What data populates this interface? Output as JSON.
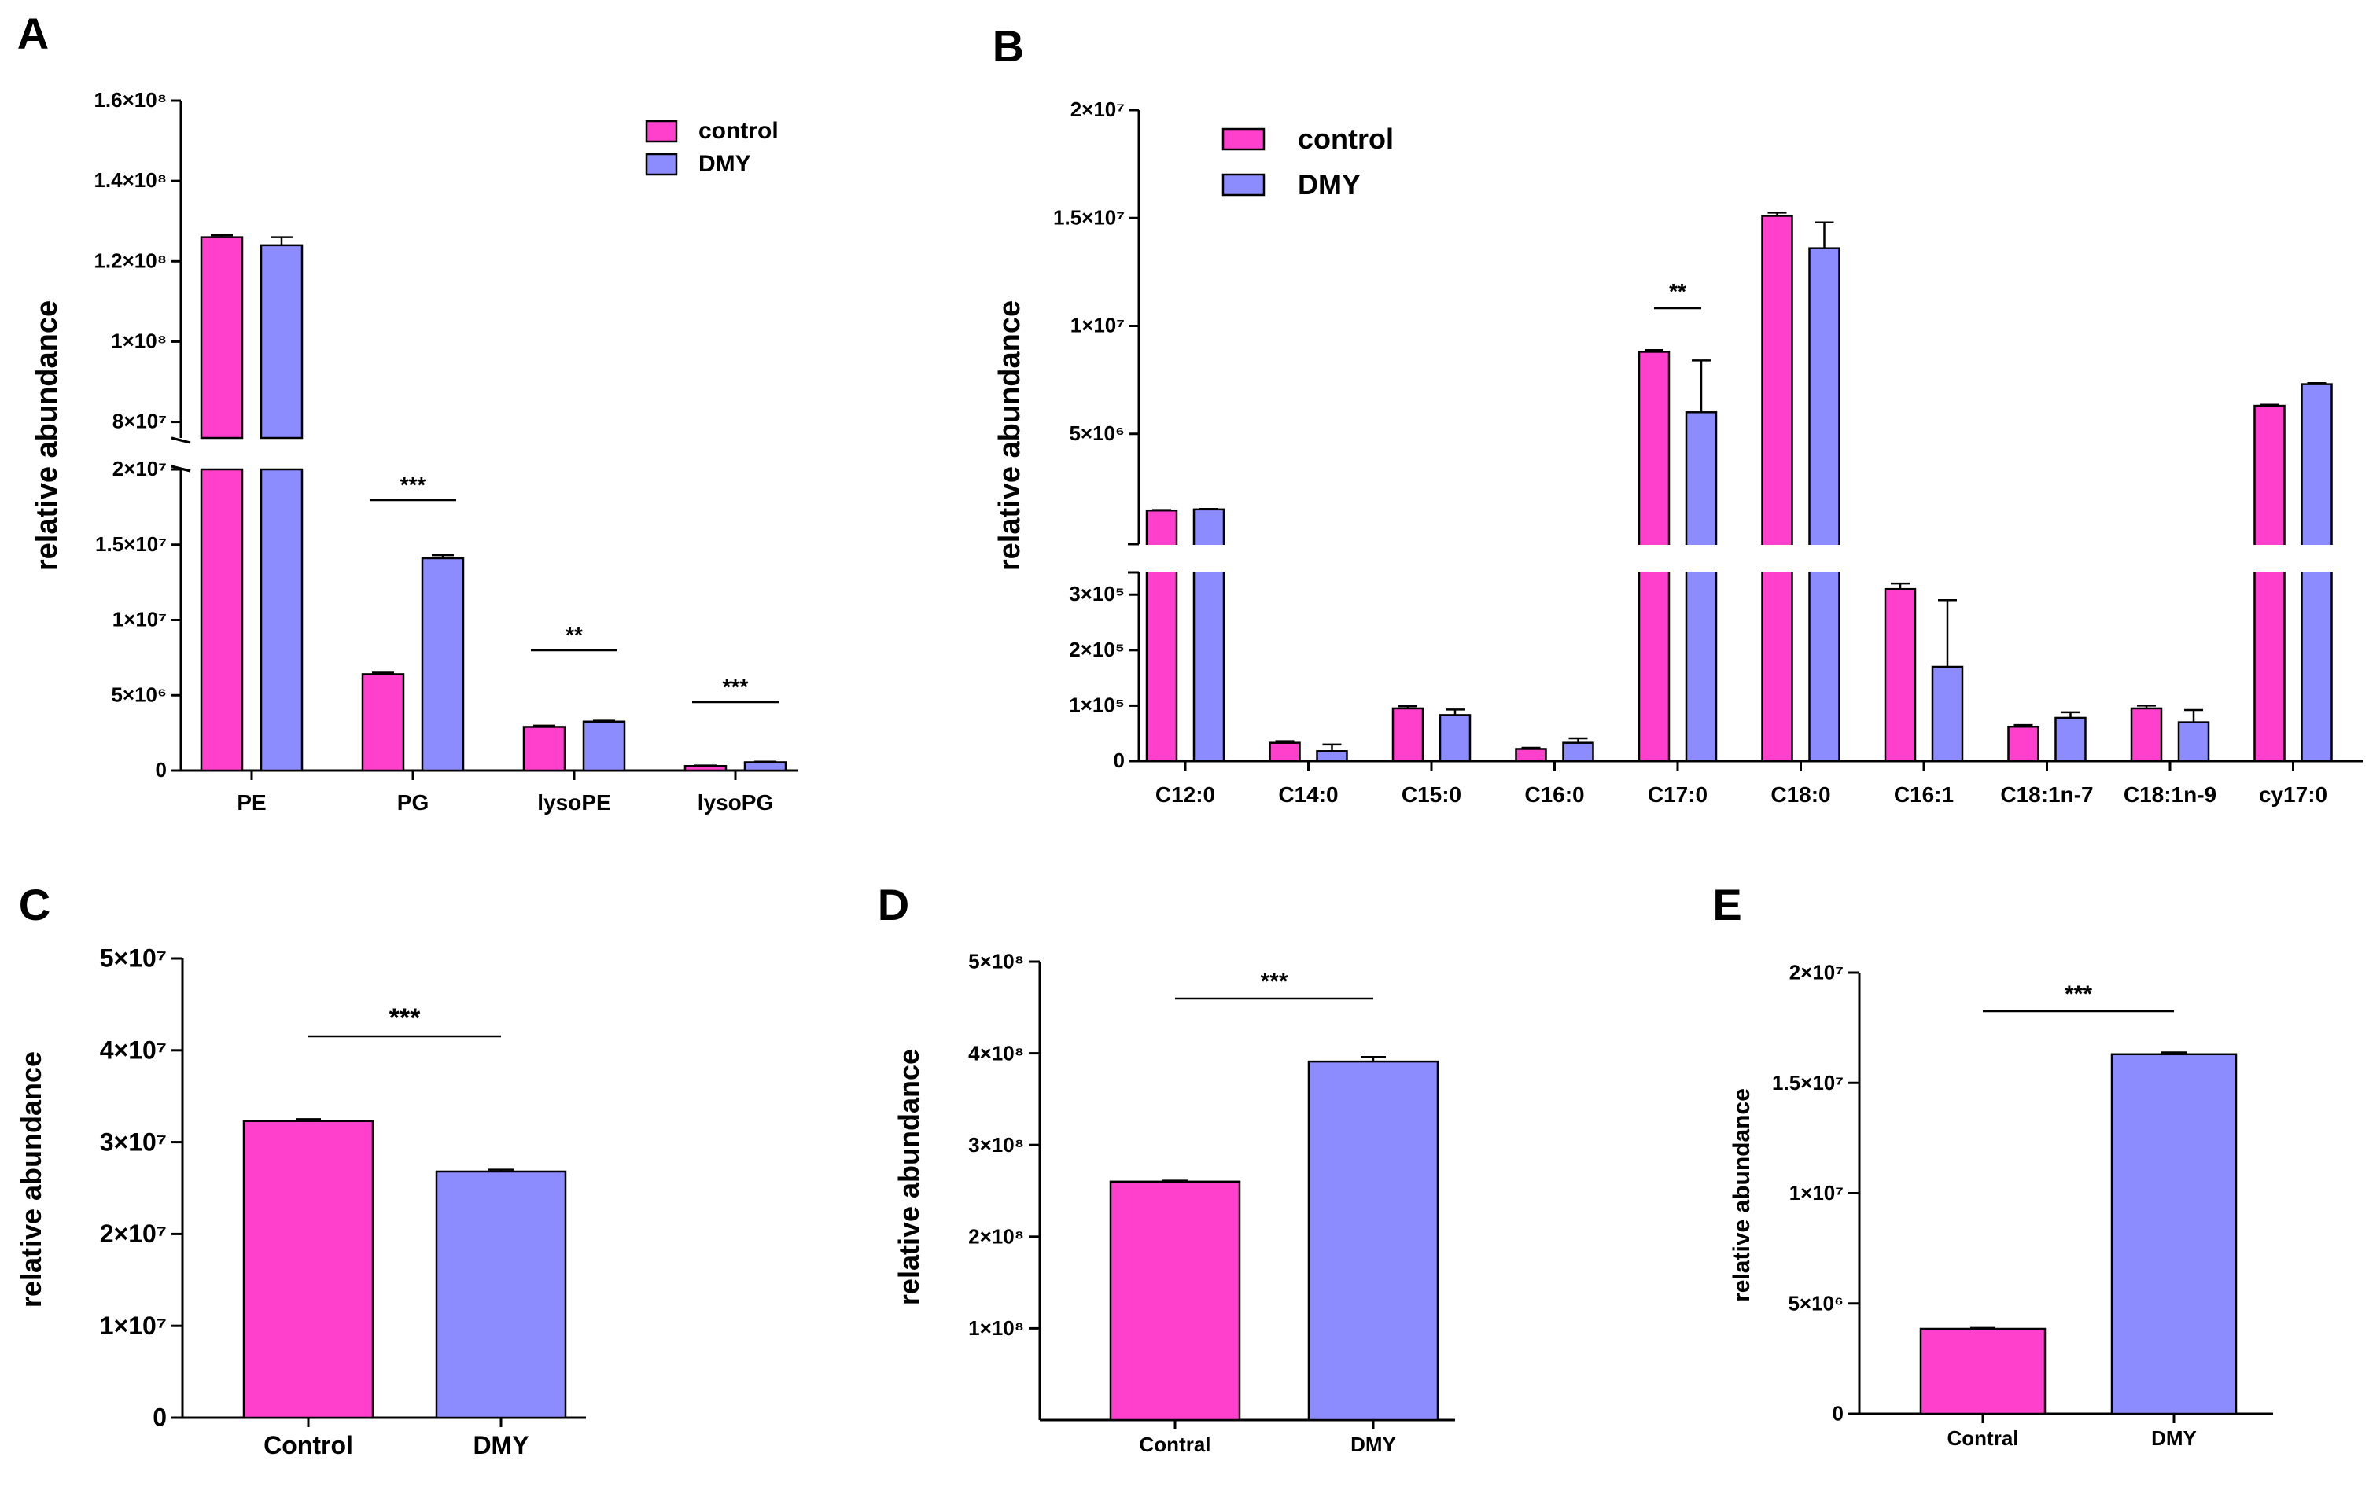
{
  "colors": {
    "control": "#FF40CC",
    "dmy": "#8C8CFF",
    "axis": "#000000"
  },
  "chart_data": [
    {
      "panel": "A",
      "type": "bar",
      "ylabel": "relative abundance",
      "categories": [
        "PE",
        "PG",
        "lysoPE",
        "lysoPG"
      ],
      "series": [
        {
          "name": "control",
          "values": [
            126000000,
            6400000,
            2900000,
            300000
          ],
          "errors": [
            500000,
            100000,
            80000,
            30000
          ]
        },
        {
          "name": "DMY",
          "values": [
            124000000,
            14100000,
            3250000,
            550000
          ],
          "errors": [
            2000000,
            200000,
            60000,
            40000
          ]
        }
      ],
      "axis_break": {
        "lower": [
          0,
          20000000
        ],
        "upper": [
          76000000,
          160000000
        ]
      },
      "yticks_lower": [
        {
          "value": 0,
          "label": "0"
        },
        {
          "value": 5000000,
          "label": "5×10⁶"
        },
        {
          "value": 10000000,
          "label": "1×10⁷"
        },
        {
          "value": 15000000,
          "label": "1.5×10⁷"
        },
        {
          "value": 20000000,
          "label": "2×10⁷"
        }
      ],
      "yticks_upper": [
        {
          "value": 80000000,
          "label": "8×10⁷"
        },
        {
          "value": 100000000,
          "label": "1×10⁸"
        },
        {
          "value": 120000000,
          "label": "1.2×10⁸"
        },
        {
          "value": 140000000,
          "label": "1.4×10⁸"
        },
        {
          "value": 160000000,
          "label": "1.6×10⁸"
        }
      ],
      "significance": [
        {
          "category": "PG",
          "label": "***"
        },
        {
          "category": "lysoPE",
          "label": "**"
        },
        {
          "category": "lysoPG",
          "label": "***"
        }
      ],
      "legend": {
        "position": "top-right",
        "entries": [
          "control",
          "DMY"
        ]
      }
    },
    {
      "panel": "B",
      "type": "bar",
      "ylabel": "relative abundance",
      "categories": [
        "C12:0",
        "C14:0",
        "C15:0",
        "C16:0",
        "C17:0",
        "C18:0",
        "C16:1",
        "C18:1n-7",
        "C18:1n-9",
        "cy17:0"
      ],
      "series": [
        {
          "name": "control",
          "values": [
            1450000,
            33000,
            95000,
            22000,
            8800000,
            15100000,
            310000,
            62000,
            95000,
            6300000
          ],
          "errors": [
            20000,
            3000,
            4000,
            2000,
            80000,
            150000,
            10000,
            3000,
            5000,
            50000
          ]
        },
        {
          "name": "DMY",
          "values": [
            1500000,
            18000,
            83000,
            33000,
            6000000,
            13600000,
            170000,
            78000,
            70000,
            7300000
          ],
          "errors": [
            20000,
            12000,
            10000,
            8000,
            2400000,
            1200000,
            120000,
            10000,
            22000,
            50000
          ]
        }
      ],
      "axis_break": {
        "lower": [
          0,
          340000
        ],
        "upper": [
          0,
          20000000
        ]
      },
      "yticks_lower": [
        {
          "value": 0,
          "label": "0"
        },
        {
          "value": 100000,
          "label": "1×10⁵"
        },
        {
          "value": 200000,
          "label": "2×10⁵"
        },
        {
          "value": 300000,
          "label": "3×10⁵"
        }
      ],
      "yticks_upper": [
        {
          "value": 5000000,
          "label": "5×10⁶"
        },
        {
          "value": 10000000,
          "label": "1×10⁷"
        },
        {
          "value": 15000000,
          "label": "1.5×10⁷"
        },
        {
          "value": 20000000,
          "label": "2×10⁷"
        }
      ],
      "significance": [
        {
          "category": "C17:0",
          "label": "**"
        }
      ],
      "legend": {
        "position": "top-left",
        "entries": [
          "control",
          "DMY"
        ]
      }
    },
    {
      "panel": "C",
      "type": "bar",
      "ylabel": "relative abundance",
      "categories": [
        "Control",
        "DMY"
      ],
      "values": [
        32300000,
        26800000
      ],
      "errors": [
        200000,
        200000
      ],
      "ylim": [
        0,
        50000000
      ],
      "yticks": [
        {
          "value": 0,
          "label": "0"
        },
        {
          "value": 10000000,
          "label": "1×10⁷"
        },
        {
          "value": 20000000,
          "label": "2×10⁷"
        },
        {
          "value": 30000000,
          "label": "3×10⁷"
        },
        {
          "value": 40000000,
          "label": "4×10⁷"
        },
        {
          "value": 50000000,
          "label": "5×10⁷"
        }
      ],
      "significance": "***"
    },
    {
      "panel": "D",
      "type": "bar",
      "ylabel": "relative abundance",
      "categories": [
        "Contral",
        "DMY"
      ],
      "values": [
        260000000,
        391000000
      ],
      "errors": [
        1000000,
        5000000
      ],
      "ylim": [
        0,
        500000000
      ],
      "yticks": [
        {
          "value": 100000000,
          "label": "1×10⁸"
        },
        {
          "value": 200000000,
          "label": "2×10⁸"
        },
        {
          "value": 300000000,
          "label": "3×10⁸"
        },
        {
          "value": 400000000,
          "label": "4×10⁸"
        },
        {
          "value": 500000000,
          "label": "5×10⁸"
        }
      ],
      "significance": "***"
    },
    {
      "panel": "E",
      "type": "bar",
      "ylabel": "relative abundance",
      "categories": [
        "Contral",
        "DMY"
      ],
      "values": [
        3850000,
        16300000
      ],
      "errors": [
        40000,
        80000
      ],
      "ylim": [
        0,
        20000000
      ],
      "yticks": [
        {
          "value": 0,
          "label": "0"
        },
        {
          "value": 5000000,
          "label": "5×10⁶"
        },
        {
          "value": 10000000,
          "label": "1×10⁷"
        },
        {
          "value": 15000000,
          "label": "1.5×10⁷"
        },
        {
          "value": 20000000,
          "label": "2×10⁷"
        }
      ],
      "significance": "***"
    }
  ]
}
